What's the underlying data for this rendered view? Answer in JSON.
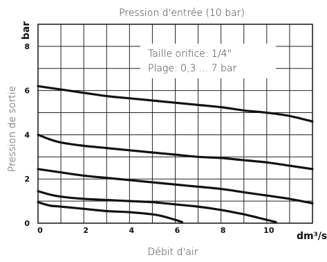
{
  "chart_data": {
    "type": "line",
    "title": "Pression d'entrée (10 bar)",
    "xlabel": "Débit d'air",
    "ylabel": "Pression de sortie",
    "x_unit": "dm³/s",
    "y_unit": "bar",
    "xlim": [
      0,
      12
    ],
    "ylim": [
      0,
      9
    ],
    "x_ticks": [
      0,
      2,
      4,
      6,
      8,
      10
    ],
    "y_ticks": [
      0,
      2,
      4,
      6,
      8
    ],
    "x_tick_labels": [
      "0",
      "2",
      "4",
      "6",
      "8",
      "10"
    ],
    "y_tick_labels": [
      "0",
      "2",
      "4",
      "6",
      "8"
    ],
    "grid": true,
    "annotation": {
      "line1": "Taille orifice: 1/4\"",
      "line2": "Plage: 0,3 ... 7 bar"
    },
    "series": [
      {
        "x": [
          0,
          1,
          2,
          3,
          4,
          5,
          6,
          7,
          8,
          9,
          10,
          11,
          12
        ],
        "y": [
          6.2,
          6.05,
          5.9,
          5.75,
          5.65,
          5.55,
          5.45,
          5.35,
          5.25,
          5.1,
          5.0,
          4.85,
          4.6
        ]
      },
      {
        "x": [
          0,
          0.5,
          1,
          2,
          3,
          4,
          5,
          6,
          7,
          8,
          9,
          10,
          11,
          12
        ],
        "y": [
          4.0,
          3.8,
          3.65,
          3.5,
          3.4,
          3.3,
          3.2,
          3.1,
          3.0,
          2.95,
          2.85,
          2.75,
          2.6,
          2.45
        ]
      },
      {
        "x": [
          0,
          1,
          2,
          3,
          4,
          5,
          6,
          7,
          8,
          9,
          10,
          11,
          12
        ],
        "y": [
          2.45,
          2.3,
          2.15,
          2.05,
          1.95,
          1.85,
          1.75,
          1.65,
          1.55,
          1.4,
          1.25,
          1.1,
          0.9
        ]
      },
      {
        "x": [
          0,
          0.5,
          1,
          2,
          3,
          4,
          5,
          6,
          7,
          8,
          9,
          10,
          10.4
        ],
        "y": [
          1.45,
          1.3,
          1.2,
          1.1,
          1.05,
          1.0,
          0.95,
          0.85,
          0.75,
          0.6,
          0.4,
          0.15,
          0.05
        ]
      },
      {
        "x": [
          0,
          0.5,
          1,
          2,
          3,
          4,
          5,
          5.5,
          6,
          6.3
        ],
        "y": [
          0.95,
          0.8,
          0.75,
          0.65,
          0.55,
          0.5,
          0.4,
          0.3,
          0.15,
          0.05
        ]
      }
    ],
    "line_color": "#111111",
    "grid_color": "#222222"
  }
}
